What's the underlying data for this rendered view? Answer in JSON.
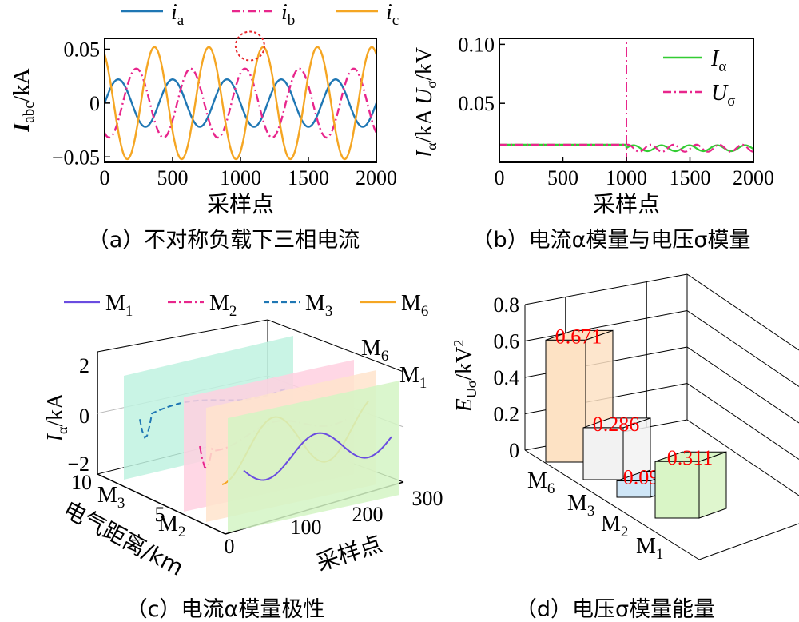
{
  "captions": {
    "a": "（a）不对称负载下三相电流",
    "b": "（b）电流α模量与电压σ模量",
    "c": "（c）电流α模量极性",
    "d": "（d）电压σ模量能量"
  },
  "chart_data": [
    {
      "id": "a",
      "type": "line",
      "xlabel": "采样点",
      "ylabel": "I_abc/kA",
      "ylabel_main": "I",
      "ylabel_sub": "abc",
      "ylabel_unit": "/kA",
      "xlim": [
        0,
        2000
      ],
      "ylim": [
        -0.055,
        0.06
      ],
      "xticks": [
        "0",
        "500",
        "1000",
        "1500",
        "2000"
      ],
      "yticks": [
        "0.05",
        "0",
        "−0.05"
      ],
      "legend_position": "top",
      "colors": {
        "ia": "#1f77b4",
        "ib": "#e8268c",
        "ic": "#f5a623",
        "marker": "#e8262c"
      },
      "series": [
        {
          "name": "i_a",
          "base": "i",
          "sub": "a",
          "amplitude": 0.022,
          "period": 400,
          "phase_deg": 0,
          "style": "solid"
        },
        {
          "name": "i_b",
          "base": "i",
          "sub": "b",
          "amplitude": 0.032,
          "period": 400,
          "phase_deg": -120,
          "style": "dashdot"
        },
        {
          "name": "i_c",
          "base": "i",
          "sub": "c",
          "amplitude": 0.052,
          "period": 400,
          "phase_deg": 120,
          "style": "solid"
        }
      ],
      "highlight": {
        "x": 1070,
        "y": 0.05
      }
    },
    {
      "id": "b",
      "type": "line",
      "xlabel": "采样点",
      "ylabel": "I_α/kA U_σ/kV",
      "xlim": [
        0,
        2000
      ],
      "ylim": [
        0,
        0.105
      ],
      "xticks": [
        "0",
        "500",
        "1000",
        "1500",
        "2000"
      ],
      "yticks": [
        "0.10",
        "0.05"
      ],
      "legend_position": "top-right",
      "colors": {
        "I": "#33cc33",
        "U": "#e8268c"
      },
      "series": [
        {
          "name": "I_α",
          "base": "I",
          "sub": "α",
          "pre_value": 0.015,
          "post_value": 0.012,
          "ripple": 0.0025,
          "style": "solid"
        },
        {
          "name": "U_σ",
          "base": "U",
          "sub": "σ",
          "pre_value": 0.015,
          "post_value": 0.012,
          "ripple": 0.003,
          "spike_x": 1000,
          "style": "dashdot"
        }
      ]
    },
    {
      "id": "c",
      "type": "line",
      "projection": "3d",
      "xlabel": "采样点",
      "ylabel": "电气距离/km",
      "zlabel": "I_α/kA",
      "xlim": [
        0,
        300
      ],
      "zlim": [
        -2,
        2
      ],
      "xticks": [
        "0",
        "100",
        "200",
        "300"
      ],
      "distance_ticks": [
        "10",
        "5",
        "0"
      ],
      "zticks": [
        "2",
        "0",
        "−2"
      ],
      "legend_position": "top",
      "series_labels": [
        {
          "name": "M3",
          "base": "M",
          "sub": "3"
        },
        {
          "name": "M2",
          "base": "M",
          "sub": "2"
        },
        {
          "name": "M6",
          "base": "M",
          "sub": "6"
        },
        {
          "name": "M1",
          "base": "M",
          "sub": "1"
        }
      ],
      "series": [
        {
          "name": "M1",
          "base": "M",
          "sub": "1",
          "color": "#6a4ce0",
          "plane": "#d4f5c4",
          "style": "solid"
        },
        {
          "name": "M2",
          "base": "M",
          "sub": "2",
          "color": "#e8268c",
          "plane": "#ffd0e0",
          "style": "dashdot"
        },
        {
          "name": "M3",
          "base": "M",
          "sub": "3",
          "color": "#1f77b4",
          "plane": "#bff2e0",
          "style": "dashed"
        },
        {
          "name": "M6",
          "base": "M",
          "sub": "6",
          "color": "#f5a623",
          "plane": "#ffe4cc",
          "style": "solid"
        }
      ]
    },
    {
      "id": "d",
      "type": "bar",
      "projection": "3d",
      "zlabel": "E_Uσ/kV²",
      "zlim": [
        0,
        0.8
      ],
      "zticks": [
        "0",
        "0.2",
        "0.4",
        "0.6",
        "0.8"
      ],
      "categories": [
        "M6",
        "M3",
        "M2",
        "M1"
      ],
      "category_labels": [
        {
          "base": "M",
          "sub": "6"
        },
        {
          "base": "M",
          "sub": "3"
        },
        {
          "base": "M",
          "sub": "2"
        },
        {
          "base": "M",
          "sub": "1"
        }
      ],
      "values": [
        0.671,
        0.286,
        0.09,
        0.311
      ],
      "value_labels": [
        "0.671",
        "0.286",
        "0.090",
        "0.311"
      ],
      "colors": [
        "#fde2c4",
        "#f2f2f2",
        "#cfe6f7",
        "#d9f5c6"
      ]
    }
  ]
}
